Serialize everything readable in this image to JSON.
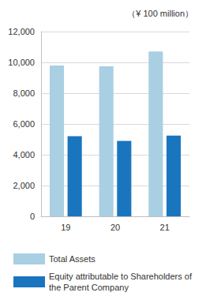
{
  "chart_data": {
    "type": "bar",
    "ylabel": "（¥ 100 million）",
    "categories": [
      "19",
      "20",
      "21"
    ],
    "series": [
      {
        "name": "Total Assets",
        "color": "#a9cfe3",
        "values": [
          9800,
          9750,
          10700
        ]
      },
      {
        "name": "Equity attributable to Shareholders of the Parent Company",
        "color": "#1a75bf",
        "values": [
          5200,
          4900,
          5250
        ]
      }
    ],
    "ylim": [
      0,
      12000
    ],
    "yticks": [
      0,
      {
        "value": 2000,
        "label": "2,000"
      },
      {
        "value": 4000,
        "label": "4,000"
      },
      {
        "value": 6000,
        "label": "6,000"
      },
      {
        "value": 8000,
        "label": "8,000"
      },
      {
        "value": 10000,
        "label": "10,000"
      },
      {
        "value": 12000,
        "label": "12,000"
      }
    ],
    "grid": true,
    "legend": "bottom"
  }
}
